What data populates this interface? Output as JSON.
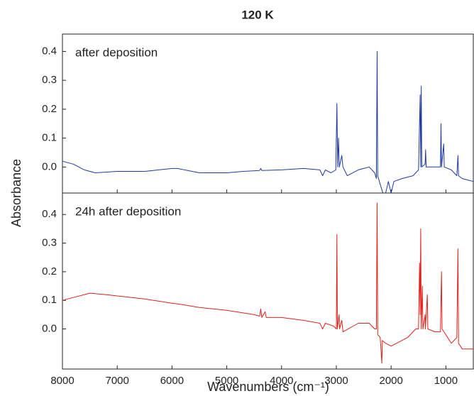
{
  "title": "120 K",
  "ylabel": "Absorbance",
  "xlabel": "Wavenumbers (cm⁻¹)",
  "chart_data": [
    {
      "type": "line",
      "annotation": "after deposition",
      "xlim": [
        8000,
        500
      ],
      "ylim": [
        -0.09,
        0.46
      ],
      "yticks": [
        {
          "value": 0,
          "label": "0.0"
        },
        0.1,
        0.2,
        0.3,
        0.4
      ],
      "series": [
        {
          "color": "#1f3a9e",
          "x": [
            8000,
            7800,
            7600,
            7400,
            7000,
            6500,
            6000,
            5900,
            5500,
            5000,
            4700,
            4400,
            4380,
            4360,
            4000,
            3600,
            3300,
            3250,
            3200,
            3100,
            3010,
            2990,
            2975,
            2960,
            2945,
            2900,
            2880,
            2800,
            2600,
            2400,
            2300,
            2270,
            2255,
            2245,
            2200,
            2150,
            2100,
            2050,
            2000,
            1950,
            1800,
            1600,
            1500,
            1470,
            1460,
            1450,
            1440,
            1380,
            1370,
            1360,
            1200,
            1100,
            1090,
            1080,
            1040,
            1030,
            900,
            800,
            780,
            770,
            700,
            500
          ],
          "values": [
            0.02,
            0.01,
            -0.01,
            -0.02,
            -0.015,
            -0.015,
            -0.005,
            -0.005,
            -0.02,
            -0.02,
            -0.015,
            -0.012,
            -0.005,
            -0.012,
            -0.01,
            -0.005,
            -0.01,
            -0.03,
            -0.01,
            -0.02,
            -0.01,
            0.22,
            0.0,
            0.1,
            0.0,
            0.04,
            0.0,
            -0.03,
            -0.01,
            0.0,
            -0.02,
            -0.04,
            0.4,
            -0.03,
            -0.06,
            -0.09,
            -0.09,
            -0.05,
            -0.09,
            -0.05,
            -0.04,
            -0.03,
            -0.01,
            0.25,
            0.0,
            0.28,
            0.0,
            0.01,
            0.06,
            0.0,
            0.0,
            0.0,
            0.15,
            0.0,
            0.08,
            0.0,
            -0.01,
            -0.03,
            0.04,
            -0.03,
            -0.04,
            -0.05
          ]
        }
      ]
    },
    {
      "type": "line",
      "annotation": "24h after deposition",
      "xlim": [
        8000,
        500
      ],
      "ylim": [
        -0.14,
        0.475
      ],
      "xticks": [
        8000,
        7000,
        6000,
        5000,
        4000,
        3000,
        2000,
        1000
      ],
      "yticks": [
        {
          "value": 0,
          "label": "0.0"
        },
        0.1,
        0.2,
        0.3,
        0.4
      ],
      "series": [
        {
          "color": "#e0201b",
          "x": [
            8000,
            7800,
            7500,
            7200,
            6500,
            6000,
            5900,
            5500,
            5000,
            4500,
            4400,
            4380,
            4360,
            4300,
            4280,
            4000,
            3600,
            3300,
            3250,
            3200,
            3050,
            3000,
            2990,
            2980,
            2950,
            2940,
            2900,
            2880,
            2600,
            2400,
            2300,
            2270,
            2255,
            2245,
            2200,
            2170,
            2160,
            2100,
            2000,
            1900,
            1700,
            1550,
            1500,
            1480,
            1470,
            1460,
            1450,
            1430,
            1420,
            1380,
            1375,
            1340,
            1330,
            1200,
            1100,
            1080,
            1070,
            900,
            800,
            780,
            770,
            700,
            500
          ],
          "values": [
            0.1,
            0.11,
            0.125,
            0.12,
            0.105,
            0.09,
            0.088,
            0.075,
            0.065,
            0.05,
            0.045,
            0.07,
            0.04,
            0.06,
            0.04,
            0.04,
            0.03,
            0.02,
            0.0,
            0.02,
            0.01,
            0.0,
            0.33,
            0.0,
            0.05,
            0.0,
            0.03,
            -0.01,
            0.02,
            0.02,
            0.0,
            0.0,
            0.44,
            -0.02,
            -0.03,
            -0.12,
            -0.04,
            -0.05,
            -0.06,
            -0.05,
            -0.03,
            0.0,
            0.0,
            0.23,
            0.05,
            0.35,
            0.0,
            0.15,
            0.0,
            0.05,
            0.0,
            0.12,
            0.0,
            -0.01,
            -0.01,
            0.2,
            0.0,
            -0.05,
            -0.03,
            0.28,
            -0.05,
            -0.07,
            -0.07
          ]
        }
      ]
    }
  ]
}
